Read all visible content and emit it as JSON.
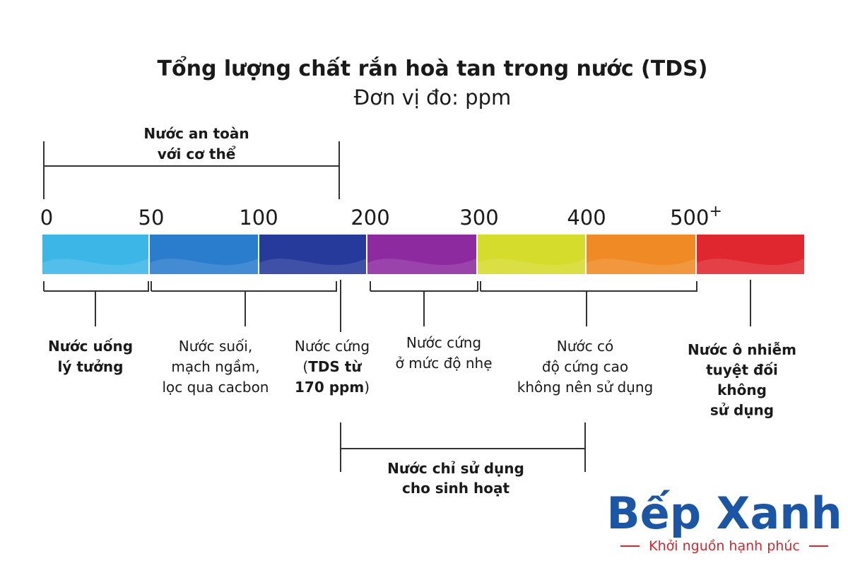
{
  "header": {
    "title": "Tổng lượng chất rắn hoà tan trong nước (TDS)",
    "subtitle": "Đơn vị đo: ppm"
  },
  "scale": {
    "ticks": [
      "0",
      "50",
      "100",
      "200",
      "300",
      "400",
      "500"
    ],
    "last_suffix": "+",
    "colors": [
      "#3bb6e6",
      "#2a7ccc",
      "#253a9a",
      "#8d2aa0",
      "#d5dc2b",
      "#ef8a25",
      "#e0262e"
    ]
  },
  "groups": [
    {
      "lines": [
        [
          {
            "text": "Nước an toàn",
            "bold": true
          }
        ],
        [
          {
            "text": "với cơ thể",
            "bold": true
          }
        ]
      ]
    },
    {
      "lines": [
        [
          {
            "text": "Nước chỉ sử dụng",
            "bold": true
          }
        ],
        [
          {
            "text": "cho sinh hoạt",
            "bold": true
          }
        ]
      ]
    }
  ],
  "labels": [
    {
      "lines": [
        [
          {
            "text": "Nước uống",
            "bold": true
          }
        ],
        [
          {
            "text": "lý tưởng",
            "bold": true
          }
        ]
      ]
    },
    {
      "lines": [
        [
          {
            "text": "Nước suối,",
            "bold": false
          }
        ],
        [
          {
            "text": "mạch ngầm,",
            "bold": false
          }
        ],
        [
          {
            "text": "lọc qua cacbon",
            "bold": false
          }
        ]
      ]
    },
    {
      "lines": [
        [
          {
            "text": "Nước cứng",
            "bold": false
          }
        ],
        [
          {
            "text": "(",
            "bold": false
          },
          {
            "text": "TDS từ",
            "bold": true
          }
        ],
        [
          {
            "text": "170 ppm",
            "bold": true
          },
          {
            "text": ")",
            "bold": false
          }
        ]
      ]
    },
    {
      "lines": [
        [
          {
            "text": "Nước cứng",
            "bold": false
          }
        ],
        [
          {
            "text": "ở mức độ nhẹ",
            "bold": false
          }
        ]
      ]
    },
    {
      "lines": [
        [
          {
            "text": "Nước có",
            "bold": false
          }
        ],
        [
          {
            "text": "độ cứng cao",
            "bold": false
          }
        ],
        [
          {
            "text": "không nên sử dụng",
            "bold": false
          }
        ]
      ]
    },
    {
      "lines": [
        [
          {
            "text": "Nước ô nhiễm",
            "bold": true
          }
        ],
        [
          {
            "text": "tuyệt đối",
            "bold": true
          }
        ],
        [
          {
            "text": "không",
            "bold": true
          }
        ],
        [
          {
            "text": "sử dụng",
            "bold": true
          }
        ]
      ]
    }
  ],
  "brand": {
    "name": "Bếp Xanh",
    "tagline": "Khởi nguồn hạnh phúc"
  }
}
